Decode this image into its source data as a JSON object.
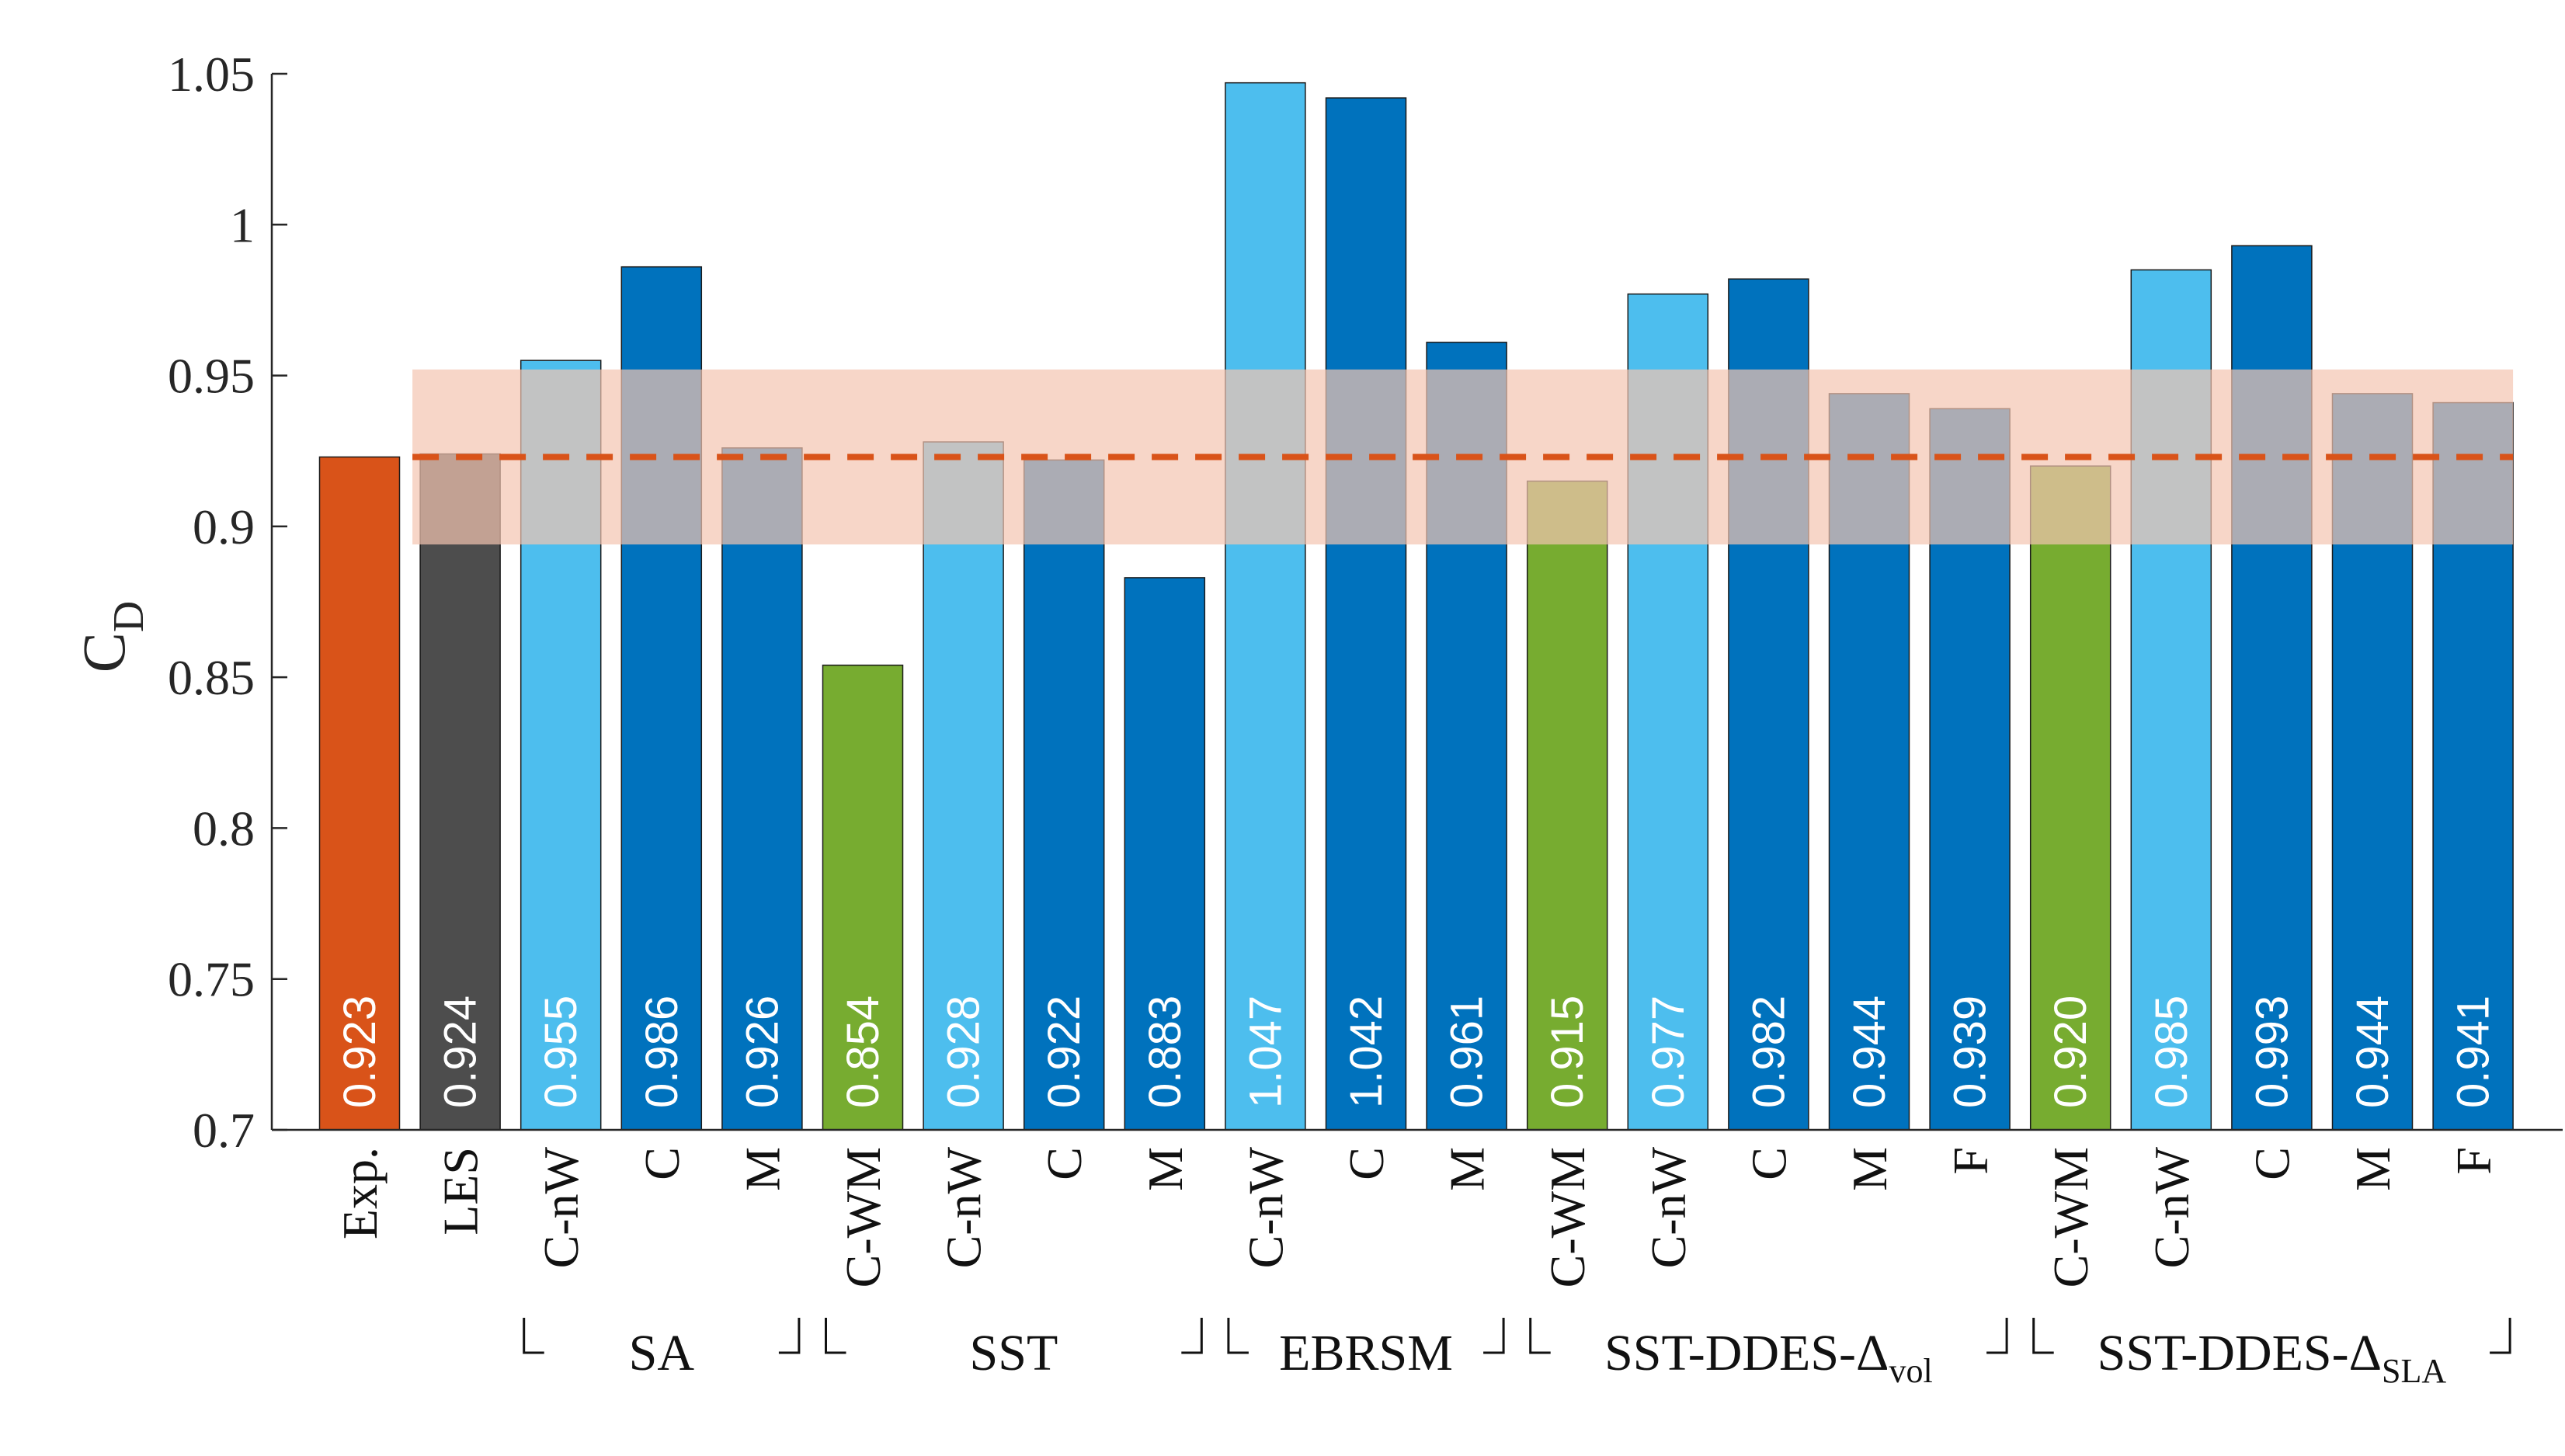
{
  "chart_data": {
    "type": "bar",
    "ylabel": "C",
    "ylabel_sub": "D",
    "ylim": [
      0.7,
      1.05
    ],
    "yticks": [
      "0.7",
      "0.75",
      "0.8",
      "0.85",
      "0.9",
      "0.95",
      "1",
      "1.05"
    ],
    "reference": {
      "label": "Exp.",
      "value": 0.923,
      "band": [
        0.894,
        0.952
      ]
    },
    "categories": [
      "Exp.",
      "LES",
      "C-nW",
      "C",
      "M",
      "C-WM",
      "C-nW",
      "C",
      "M",
      "C-nW",
      "C",
      "M",
      "C-WM",
      "C-nW",
      "C",
      "M",
      "F",
      "C-WM",
      "C-nW",
      "C",
      "M",
      "F"
    ],
    "values": [
      0.923,
      0.924,
      0.955,
      0.986,
      0.926,
      0.854,
      0.928,
      0.922,
      0.883,
      1.047,
      1.042,
      0.961,
      0.915,
      0.977,
      0.982,
      0.944,
      0.939,
      0.92,
      0.985,
      0.993,
      0.944,
      0.941
    ],
    "value_labels": [
      "0.923",
      "0.924",
      "0.955",
      "0.986",
      "0.926",
      "0.854",
      "0.928",
      "0.922",
      "0.883",
      "1.047",
      "1.042",
      "0.961",
      "0.915",
      "0.977",
      "0.982",
      "0.944",
      "0.939",
      "0.920",
      "0.985",
      "0.993",
      "0.944",
      "0.941"
    ],
    "bar_kinds": [
      "exp",
      "les",
      "light",
      "dark",
      "dark",
      "green",
      "light",
      "dark",
      "dark",
      "light",
      "dark",
      "dark",
      "green",
      "light",
      "dark",
      "dark",
      "dark",
      "green",
      "light",
      "dark",
      "dark",
      "dark"
    ],
    "groups": [
      {
        "label": "SA",
        "sub": "",
        "start": 2,
        "end": 4
      },
      {
        "label": "SST",
        "sub": "",
        "start": 5,
        "end": 8
      },
      {
        "label": "EBRSM",
        "sub": "",
        "start": 9,
        "end": 11
      },
      {
        "label": "SST-DDES-Δ",
        "sub": "vol",
        "start": 12,
        "end": 16
      },
      {
        "label": "SST-DDES-Δ",
        "sub": "SLA",
        "start": 17,
        "end": 21
      }
    ],
    "colors": {
      "exp": "#D95319",
      "les": "#4D4D4D",
      "light": "#4DBEEE",
      "dark": "#0072BD",
      "green": "#77AC30",
      "band": "#F3C4B1",
      "reference_line": "#D95319"
    }
  }
}
